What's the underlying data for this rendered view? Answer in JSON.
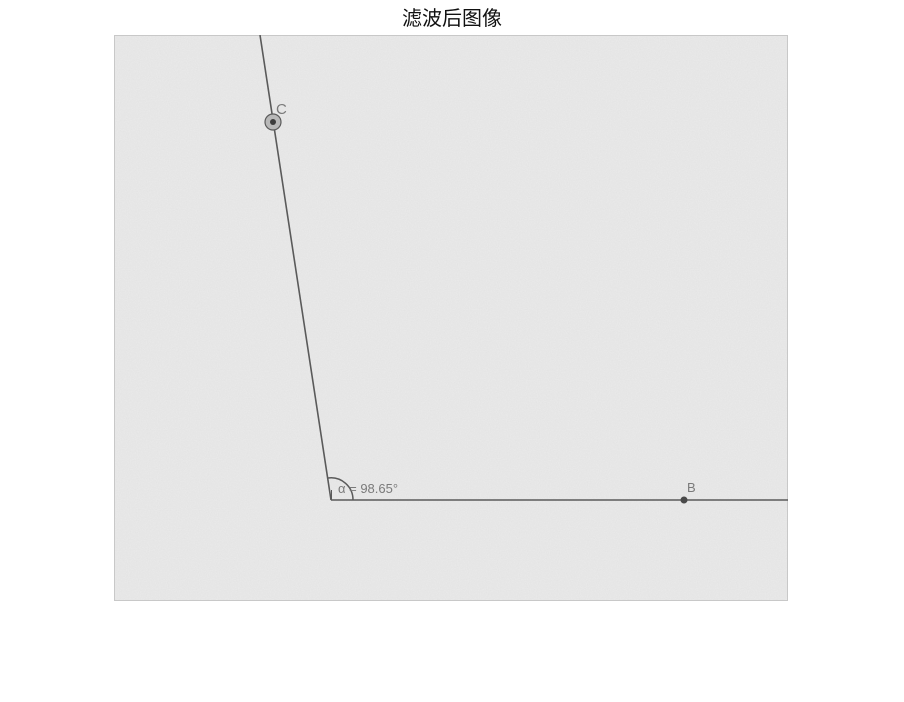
{
  "figure": {
    "title": "滤波后图像"
  },
  "image": {
    "background_color": "#ebebeb",
    "line_color": "#5a5a5a",
    "label_color": "#7a7a7a",
    "points": {
      "c": {
        "label": "C"
      },
      "b": {
        "label": "B"
      },
      "vertex": {
        "label": "α = 98.65°"
      }
    }
  }
}
